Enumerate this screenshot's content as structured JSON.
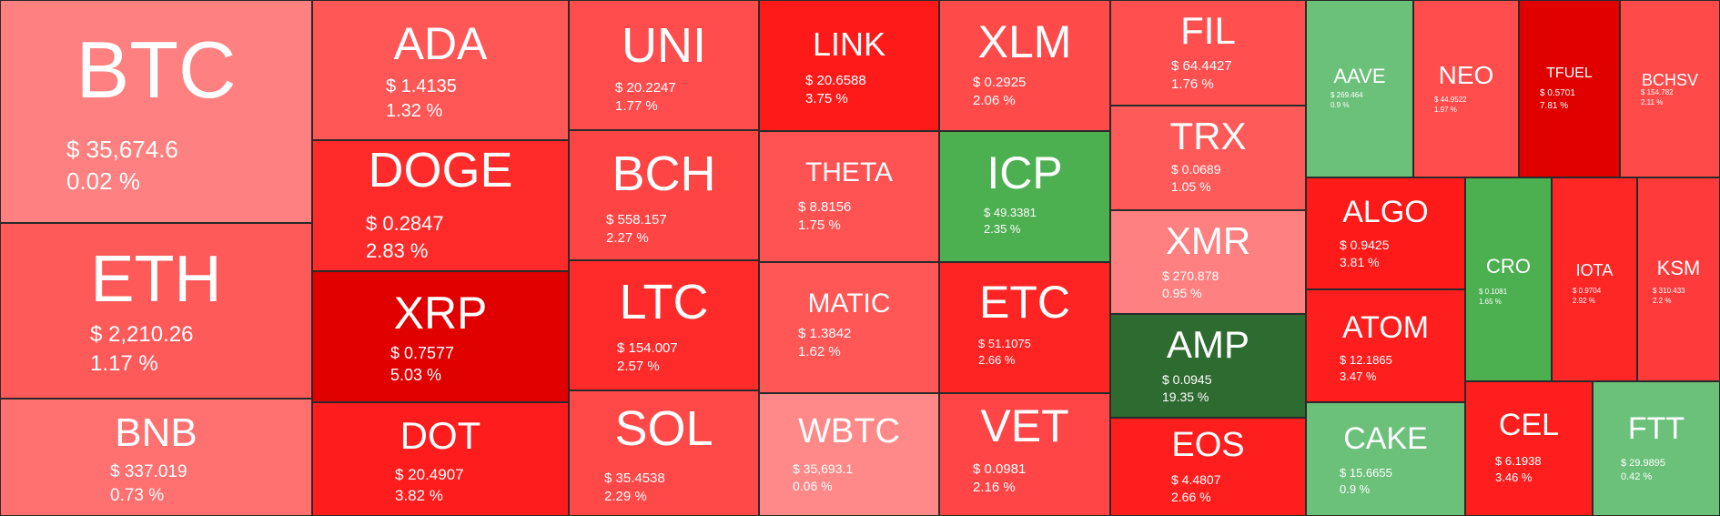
{
  "colors": {
    "down_light": "#ff8080",
    "down_mid": "#ff5252",
    "down_strong": "#ff2020",
    "down_deep": "#e00000",
    "up_light": "#6bc17a",
    "up_mid": "#4caf50",
    "up_strong": "#2e6b30"
  },
  "coins": [
    {
      "symbol": "BTC",
      "price": "$ 35,674.6",
      "change": "0.02 %",
      "color": "#ff8080"
    },
    {
      "symbol": "ETH",
      "price": "$ 2,210.26",
      "change": "1.17 %",
      "color": "#ff5a5a"
    },
    {
      "symbol": "BNB",
      "price": "$ 337.019",
      "change": "0.73 %",
      "color": "#ff7070"
    },
    {
      "symbol": "ADA",
      "price": "$ 1.4135",
      "change": "1.32 %",
      "color": "#ff5656"
    },
    {
      "symbol": "DOGE",
      "price": "$ 0.2847",
      "change": "2.83 %",
      "color": "#ff2a2a"
    },
    {
      "symbol": "XRP",
      "price": "$ 0.7577",
      "change": "5.03 %",
      "color": "#e00000"
    },
    {
      "symbol": "DOT",
      "price": "$ 20.4907",
      "change": "3.82 %",
      "color": "#ff1c1c"
    },
    {
      "symbol": "UNI",
      "price": "$ 20.2247",
      "change": "1.77 %",
      "color": "#ff4d4d"
    },
    {
      "symbol": "BCH",
      "price": "$ 558.157",
      "change": "2.27 %",
      "color": "#ff4444"
    },
    {
      "symbol": "LTC",
      "price": "$ 154.007",
      "change": "2.57 %",
      "color": "#ff2b2b"
    },
    {
      "symbol": "SOL",
      "price": "$ 35.4538",
      "change": "2.29 %",
      "color": "#ff4848"
    },
    {
      "symbol": "LINK",
      "price": "$ 20.6588",
      "change": "3.75 %",
      "color": "#ff1a1a"
    },
    {
      "symbol": "THETA",
      "price": "$ 8.8156",
      "change": "1.75 %",
      "color": "#ff5252"
    },
    {
      "symbol": "MATIC",
      "price": "$ 1.3842",
      "change": "1.62 %",
      "color": "#ff5656"
    },
    {
      "symbol": "WBTC",
      "price": "$ 35,693.1",
      "change": "0.06 %",
      "color": "#ff8888"
    },
    {
      "symbol": "XLM",
      "price": "$ 0.2925",
      "change": "2.06 %",
      "color": "#ff4a4a"
    },
    {
      "symbol": "ICP",
      "price": "$ 49.3381",
      "change": "2.35 %",
      "color": "#4caf50"
    },
    {
      "symbol": "ETC",
      "price": "$ 51.1075",
      "change": "2.66 %",
      "color": "#ff2424"
    },
    {
      "symbol": "VET",
      "price": "$ 0.0981",
      "change": "2.16 %",
      "color": "#ff4545"
    },
    {
      "symbol": "FIL",
      "price": "$ 64.4427",
      "change": "1.76 %",
      "color": "#ff4f4f"
    },
    {
      "symbol": "TRX",
      "price": "$ 0.0689",
      "change": "1.05 %",
      "color": "#ff5a5a"
    },
    {
      "symbol": "XMR",
      "price": "$ 270.878",
      "change": "0.95 %",
      "color": "#ff8080"
    },
    {
      "symbol": "AMP",
      "price": "$ 0.0945",
      "change": "19.35 %",
      "color": "#2e6b30"
    },
    {
      "symbol": "EOS",
      "price": "$ 4.4807",
      "change": "2.66 %",
      "color": "#ff1e1e"
    },
    {
      "symbol": "AAVE",
      "price": "$ 269.464",
      "change": "0.9 %",
      "color": "#6bc17a"
    },
    {
      "symbol": "NEO",
      "price": "$ 44.9522",
      "change": "1.97 %",
      "color": "#ff4c4c"
    },
    {
      "symbol": "TFUEL",
      "price": "$ 0.5701",
      "change": "7.81 %",
      "color": "#e00000"
    },
    {
      "symbol": "BCHSV",
      "price": "$ 154.782",
      "change": "2.11 %",
      "color": "#ff4a4a"
    },
    {
      "symbol": "ALGO",
      "price": "$ 0.9425",
      "change": "3.81 %",
      "color": "#ff1a1a"
    },
    {
      "symbol": "ATOM",
      "price": "$ 12.1865",
      "change": "3.47 %",
      "color": "#ff1e1e"
    },
    {
      "symbol": "CAKE",
      "price": "$ 15.6655",
      "change": "0.9 %",
      "color": "#6bc17a"
    },
    {
      "symbol": "CRO",
      "price": "$ 0.1081",
      "change": "1.65 %",
      "color": "#4caf50"
    },
    {
      "symbol": "IOTA",
      "price": "$ 0.9704",
      "change": "2.92 %",
      "color": "#ff2626"
    },
    {
      "symbol": "KSM",
      "price": "$ 310.433",
      "change": "2.2 %",
      "color": "#ff3a3a"
    },
    {
      "symbol": "CEL",
      "price": "$ 6.1938",
      "change": "3.46 %",
      "color": "#ff1e1e"
    },
    {
      "symbol": "FTT",
      "price": "$ 29.9895",
      "change": "0.42 %",
      "color": "#6bc17a"
    }
  ]
}
